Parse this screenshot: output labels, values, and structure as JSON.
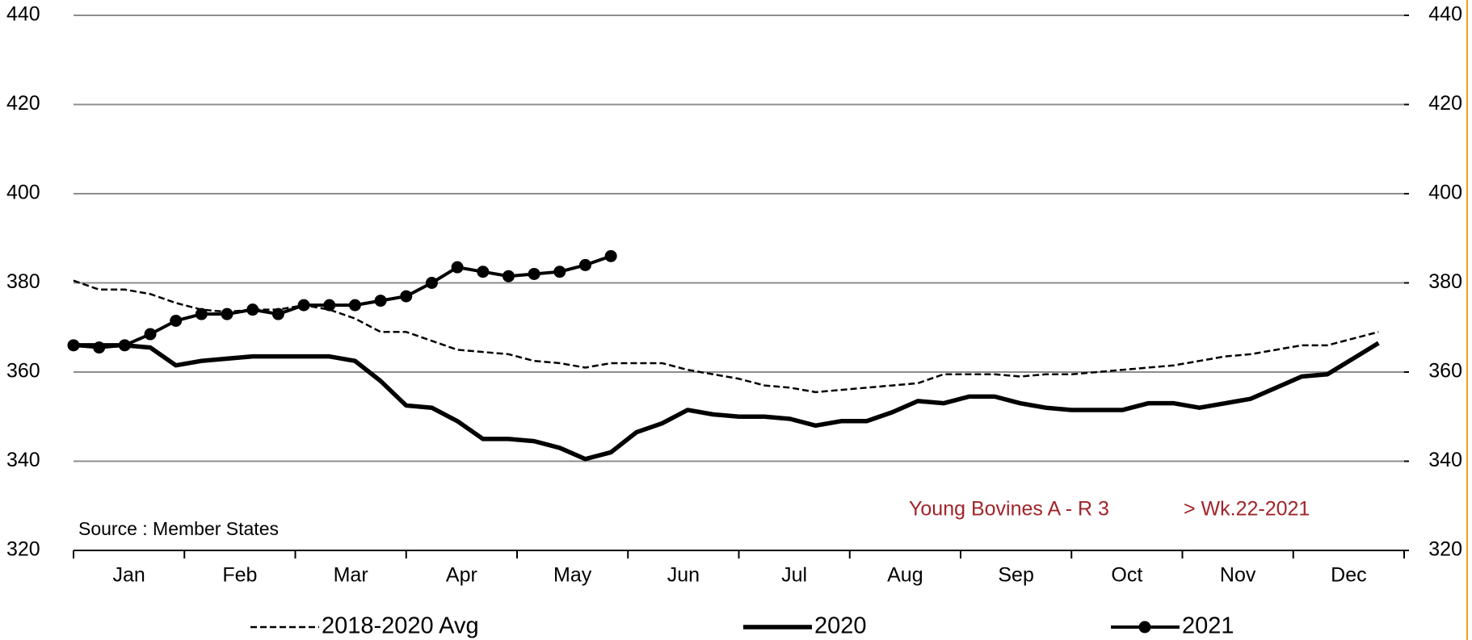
{
  "chart_data": {
    "type": "line",
    "categories": [
      "Jan",
      "Feb",
      "Mar",
      "Apr",
      "May",
      "Jun",
      "Jul",
      "Aug",
      "Sep",
      "Oct",
      "Nov",
      "Dec"
    ],
    "x": [
      1,
      2,
      3,
      4,
      5,
      6,
      7,
      8,
      9,
      10,
      11,
      12,
      13,
      14,
      15,
      16,
      17,
      18,
      19,
      20,
      21,
      22,
      23,
      24,
      25,
      26,
      27,
      28,
      29,
      30,
      31,
      32,
      33,
      34,
      35,
      36,
      37,
      38,
      39,
      40,
      41,
      42,
      43,
      44,
      45,
      46,
      47,
      48,
      49,
      50,
      51,
      52
    ],
    "xlim": [
      1,
      53
    ],
    "ylim": [
      320,
      440
    ],
    "yticks": [
      320,
      340,
      360,
      380,
      400,
      420,
      440
    ],
    "y2lim": [
      320,
      440
    ],
    "y2ticks": [
      320,
      340,
      360,
      380,
      400,
      420,
      440
    ],
    "grid": true,
    "annotations": [
      "Source : Member States",
      "Young Bovines A - R 3",
      "> Wk.22-2021"
    ],
    "series": [
      {
        "name": "2018-2020 Avg",
        "color": "#000000",
        "style": "dashed",
        "values": [
          380.5,
          378.5,
          378.5,
          377.5,
          375.5,
          374,
          373.5,
          374,
          374,
          375,
          374,
          372,
          369,
          369,
          367,
          365,
          364.5,
          364,
          362.5,
          362,
          361,
          362,
          362,
          362,
          360.5,
          359.5,
          358.5,
          357,
          356.5,
          355.5,
          356,
          356.5,
          357,
          357.5,
          359.5,
          359.5,
          359.5,
          359,
          359.5,
          359.5,
          360,
          360.5,
          361,
          361.5,
          362.5,
          363.5,
          364,
          365,
          366,
          366,
          367.5,
          369
        ]
      },
      {
        "name": "2020",
        "color": "#000000",
        "style": "thick",
        "values": [
          366,
          366,
          366,
          365.5,
          361.5,
          362.5,
          363,
          363.5,
          363.5,
          363.5,
          363.5,
          362.5,
          358,
          352.5,
          352,
          349,
          345,
          345,
          344.5,
          343,
          340.5,
          342,
          346.5,
          348.5,
          351.5,
          350.5,
          350,
          350,
          349.5,
          348,
          349,
          349,
          351,
          353.5,
          353,
          354.5,
          354.5,
          353,
          352,
          351.5,
          351.5,
          351.5,
          353,
          353,
          352,
          353,
          354,
          356.5,
          359,
          359.5,
          363,
          366.5
        ]
      },
      {
        "name": "2021",
        "color": "#000000",
        "style": "markers",
        "values": [
          366,
          365.5,
          366,
          368.5,
          371.5,
          373,
          373,
          374,
          373,
          375,
          375,
          375,
          376,
          377,
          380,
          383.5,
          382.5,
          381.5,
          382,
          382.5,
          384,
          386,
          null,
          null,
          null,
          null,
          null,
          null,
          null,
          null,
          null,
          null,
          null,
          null,
          null,
          null,
          null,
          null,
          null,
          null,
          null,
          null,
          null,
          null,
          null,
          null,
          null,
          null,
          null,
          null,
          null,
          null
        ]
      }
    ]
  }
}
